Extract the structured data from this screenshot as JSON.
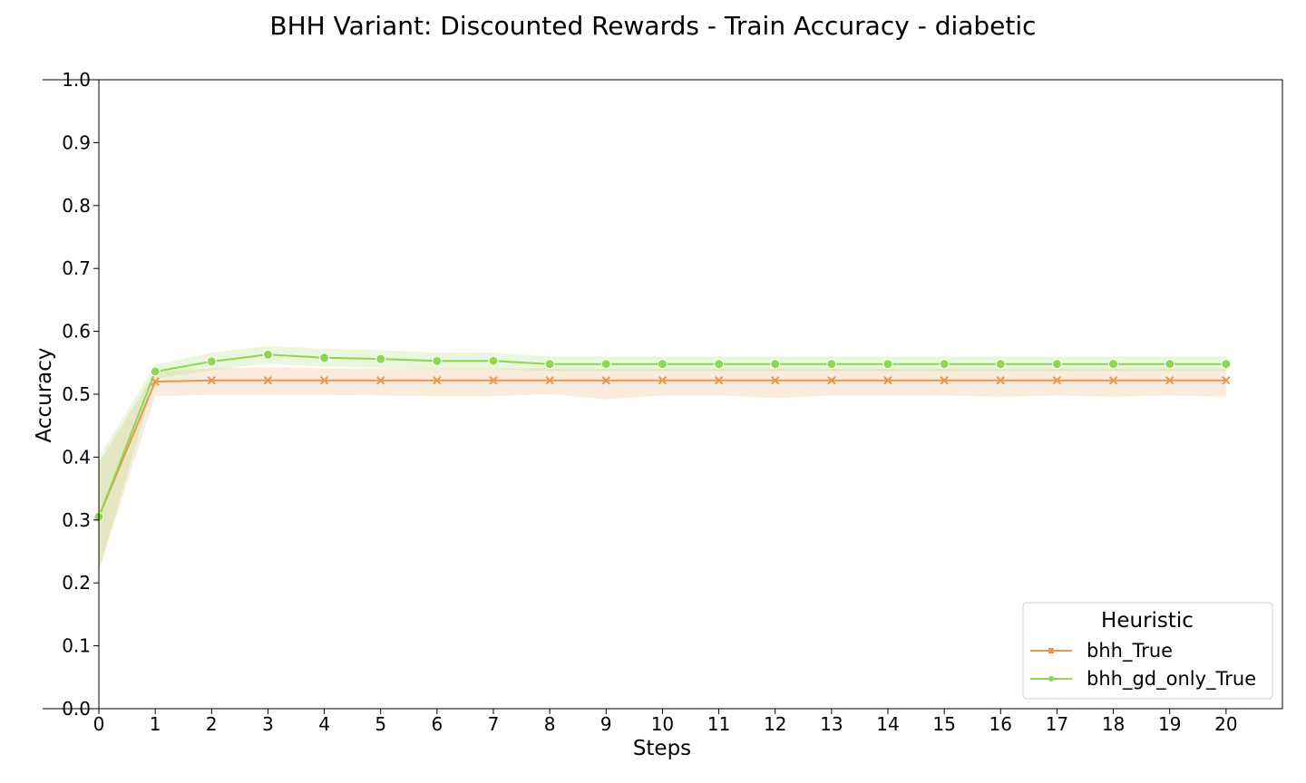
{
  "chart_data": {
    "type": "line",
    "title": "BHH Variant: Discounted Rewards - Train Accuracy - diabetic",
    "xlabel": "Steps",
    "ylabel": "Accuracy",
    "xlim": [
      0,
      21
    ],
    "ylim": [
      0,
      1
    ],
    "x": [
      0,
      1,
      2,
      3,
      4,
      5,
      6,
      7,
      8,
      9,
      10,
      11,
      12,
      13,
      14,
      15,
      16,
      17,
      18,
      19,
      20
    ],
    "x_tick_labels": [
      "0",
      "1",
      "2",
      "3",
      "4",
      "5",
      "6",
      "7",
      "8",
      "9",
      "10",
      "11",
      "12",
      "13",
      "14",
      "15",
      "16",
      "17",
      "18",
      "19",
      "20"
    ],
    "y_ticks": [
      0.0,
      0.1,
      0.2,
      0.3,
      0.4,
      0.5,
      0.6,
      0.7,
      0.8,
      0.9,
      1.0
    ],
    "y_tick_labels": [
      "0.0",
      "0.1",
      "0.2",
      "0.3",
      "0.4",
      "0.5",
      "0.6",
      "0.7",
      "0.8",
      "0.9",
      "1.0"
    ],
    "grid": false,
    "legend_position": "bottom-right",
    "legend_title": "Heuristic",
    "series": [
      {
        "name": "bhh_True",
        "color": "#e39a53",
        "marker": "x",
        "values": [
          0.305,
          0.52,
          0.522,
          0.522,
          0.522,
          0.522,
          0.522,
          0.522,
          0.522,
          0.522,
          0.522,
          0.522,
          0.522,
          0.522,
          0.522,
          0.522,
          0.522,
          0.522,
          0.522,
          0.522,
          0.522
        ],
        "lower": [
          0.22,
          0.497,
          0.499,
          0.499,
          0.499,
          0.498,
          0.497,
          0.497,
          0.5,
          0.492,
          0.498,
          0.498,
          0.494,
          0.498,
          0.498,
          0.498,
          0.496,
          0.498,
          0.496,
          0.498,
          0.496
        ],
        "upper": [
          0.39,
          0.537,
          0.541,
          0.543,
          0.541,
          0.541,
          0.541,
          0.541,
          0.541,
          0.541,
          0.541,
          0.541,
          0.541,
          0.541,
          0.541,
          0.541,
          0.541,
          0.541,
          0.541,
          0.541,
          0.541
        ]
      },
      {
        "name": "bhh_gd_only_True",
        "color": "#8fd654",
        "marker": "circle",
        "values": [
          0.305,
          0.536,
          0.552,
          0.563,
          0.558,
          0.556,
          0.553,
          0.553,
          0.548,
          0.548,
          0.548,
          0.548,
          0.548,
          0.548,
          0.548,
          0.548,
          0.548,
          0.548,
          0.548,
          0.548,
          0.548
        ],
        "lower": [
          0.22,
          0.525,
          0.538,
          0.549,
          0.544,
          0.542,
          0.54,
          0.54,
          0.537,
          0.537,
          0.537,
          0.537,
          0.537,
          0.537,
          0.537,
          0.537,
          0.537,
          0.537,
          0.537,
          0.537,
          0.537
        ],
        "upper": [
          0.4,
          0.547,
          0.566,
          0.577,
          0.572,
          0.57,
          0.566,
          0.566,
          0.56,
          0.56,
          0.56,
          0.56,
          0.56,
          0.56,
          0.56,
          0.56,
          0.56,
          0.56,
          0.56,
          0.56,
          0.56
        ]
      }
    ]
  }
}
